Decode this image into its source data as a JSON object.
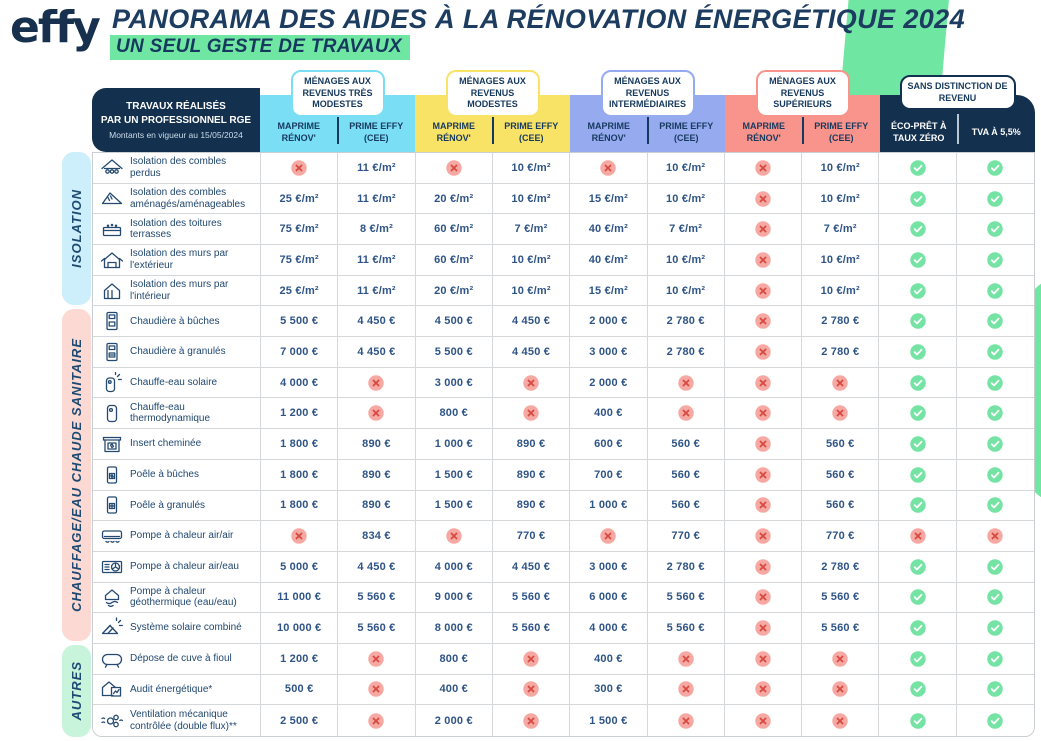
{
  "header": {
    "logo": "effy",
    "title": "PANORAMA DES AIDES À LA RÉNOVATION ÉNERGÉTIQUE 2024",
    "subtitle": "UN SEUL GESTE DE TRAVAUX"
  },
  "colors": {
    "navy": "#13304f",
    "highlight_green": "#70e6a3",
    "check_green": "#74e3a4",
    "cross_red": "#d84a41",
    "cross_bg": "#f6a9a3"
  },
  "table": {
    "corner": {
      "line1": "TRAVAUX RÉALISÉS",
      "line2": "PAR UN PROFESSIONNEL RGE",
      "line3": "Montants en vigueur au 15/05/2024"
    },
    "groups": [
      {
        "label": "MÉNAGES AUX REVENUS TRÈS MODESTES",
        "color": "#7adef5",
        "cols": [
          "MAPRIME RÉNOV'",
          "PRIME EFFY (CEE)"
        ]
      },
      {
        "label": "MÉNAGES AUX REVENUS MODESTES",
        "color": "#f9e366",
        "cols": [
          "MAPRIME RÉNOV'",
          "PRIME EFFY (CEE)"
        ]
      },
      {
        "label": "MÉNAGES AUX REVENUS INTERMÉDIAIRES",
        "color": "#96aaf0",
        "cols": [
          "MAPRIME RÉNOV'",
          "PRIME EFFY (CEE)"
        ]
      },
      {
        "label": "MÉNAGES AUX REVENUS SUPÉRIEURS",
        "color": "#f9948c",
        "cols": [
          "MAPRIME RÉNOV'",
          "PRIME EFFY (CEE)"
        ]
      },
      {
        "label": "SANS DISTINCTION DE REVENU",
        "color": "#13304f",
        "cols": [
          "ÉCO-PRÊT À TAUX ZÉRO",
          "TVA À 5,5%"
        ],
        "dark": true
      }
    ],
    "sections": [
      {
        "label": "ISOLATION",
        "color": "#cdeffb",
        "rows": [
          {
            "icon": "attic-insulation-icon",
            "label": "Isolation des combles perdus",
            "values": [
              "no",
              "11 €/m²",
              "no",
              "10 €/m²",
              "no",
              "10 €/m²",
              "no",
              "10 €/m²",
              "yes",
              "yes"
            ]
          },
          {
            "icon": "converted-attic-icon",
            "label": "Isolation des combles aménagés/aménageables",
            "values": [
              "25 €/m²",
              "11 €/m²",
              "20 €/m²",
              "10 €/m²",
              "15 €/m²",
              "10 €/m²",
              "no",
              "10 €/m²",
              "yes",
              "yes"
            ]
          },
          {
            "icon": "flat-roof-icon",
            "label": "Isolation des toitures terrasses",
            "values": [
              "75 €/m²",
              "8 €/m²",
              "60 €/m²",
              "7 €/m²",
              "40 €/m²",
              "7 €/m²",
              "no",
              "7 €/m²",
              "yes",
              "yes"
            ]
          },
          {
            "icon": "exterior-wall-icon",
            "label": "Isolation des murs par l'extérieur",
            "values": [
              "75 €/m²",
              "11 €/m²",
              "60 €/m²",
              "10 €/m²",
              "40 €/m²",
              "10 €/m²",
              "no",
              "10 €/m²",
              "yes",
              "yes"
            ]
          },
          {
            "icon": "interior-wall-icon",
            "label": "Isolation des murs par l'intérieur",
            "values": [
              "25 €/m²",
              "11 €/m²",
              "20 €/m²",
              "10 €/m²",
              "15 €/m²",
              "10 €/m²",
              "no",
              "10 €/m²",
              "yes",
              "yes"
            ]
          }
        ]
      },
      {
        "label": "CHAUFFAGE/EAU CHAUDE SANITAIRE",
        "color": "#fcd9d2",
        "rows": [
          {
            "icon": "log-boiler-icon",
            "label": "Chaudière à bûches",
            "values": [
              "5 500 €",
              "4 450 €",
              "4 500 €",
              "4 450 €",
              "2 000 €",
              "2 780 €",
              "no",
              "2 780 €",
              "yes",
              "yes"
            ]
          },
          {
            "icon": "pellet-boiler-icon",
            "label": "Chaudière à granulés",
            "values": [
              "7 000 €",
              "4 450 €",
              "5 500 €",
              "4 450 €",
              "3 000 €",
              "2 780 €",
              "no",
              "2 780 €",
              "yes",
              "yes"
            ]
          },
          {
            "icon": "solar-water-heater-icon",
            "label": "Chauffe-eau solaire",
            "values": [
              "4 000 €",
              "no",
              "3 000 €",
              "no",
              "2 000 €",
              "no",
              "no",
              "no",
              "yes",
              "yes"
            ]
          },
          {
            "icon": "thermodynamic-water-heater-icon",
            "label": "Chauffe-eau thermodynamique",
            "values": [
              "1 200 €",
              "no",
              "800 €",
              "no",
              "400 €",
              "no",
              "no",
              "no",
              "yes",
              "yes"
            ]
          },
          {
            "icon": "fireplace-insert-icon",
            "label": "Insert cheminée",
            "values": [
              "1 800 €",
              "890 €",
              "1 000 €",
              "890 €",
              "600 €",
              "560 €",
              "no",
              "560 €",
              "yes",
              "yes"
            ]
          },
          {
            "icon": "log-stove-icon",
            "label": "Poêle à bûches",
            "values": [
              "1 800 €",
              "890 €",
              "1 500 €",
              "890 €",
              "700 €",
              "560 €",
              "no",
              "560 €",
              "yes",
              "yes"
            ]
          },
          {
            "icon": "pellet-stove-icon",
            "label": "Poêle à granulés",
            "values": [
              "1 800 €",
              "890 €",
              "1 500 €",
              "890 €",
              "1 000 €",
              "560 €",
              "no",
              "560 €",
              "yes",
              "yes"
            ]
          },
          {
            "icon": "air-air-heat-pump-icon",
            "label": "Pompe à chaleur air/air",
            "values": [
              "no",
              "834 €",
              "no",
              "770 €",
              "no",
              "770 €",
              "no",
              "770 €",
              "no",
              "no"
            ]
          },
          {
            "icon": "air-water-heat-pump-icon",
            "label": "Pompe à chaleur air/eau",
            "values": [
              "5 000 €",
              "4 450 €",
              "4 000 €",
              "4 450 €",
              "3 000 €",
              "2 780 €",
              "no",
              "2 780 €",
              "yes",
              "yes"
            ]
          },
          {
            "icon": "geothermal-heat-pump-icon",
            "label": "Pompe à chaleur géothermique (eau/eau)",
            "values": [
              "11 000 €",
              "5 560 €",
              "9 000 €",
              "5 560 €",
              "6 000 €",
              "5 560 €",
              "no",
              "5 560 €",
              "yes",
              "yes"
            ]
          },
          {
            "icon": "combined-solar-system-icon",
            "label": "Système solaire combiné",
            "values": [
              "10 000 €",
              "5 560 €",
              "8 000 €",
              "5 560 €",
              "4 000 €",
              "5 560 €",
              "no",
              "5 560 €",
              "yes",
              "yes"
            ]
          }
        ]
      },
      {
        "label": "AUTRES",
        "color": "#c9f4dc",
        "rows": [
          {
            "icon": "oil-tank-icon",
            "label": "Dépose de cuve à fioul",
            "values": [
              "1 200 €",
              "no",
              "800 €",
              "no",
              "400 €",
              "no",
              "no",
              "no",
              "yes",
              "yes"
            ]
          },
          {
            "icon": "energy-audit-icon",
            "label": "Audit énergétique*",
            "values": [
              "500 €",
              "no",
              "400 €",
              "no",
              "300 €",
              "no",
              "no",
              "no",
              "yes",
              "yes"
            ]
          },
          {
            "icon": "ventilation-icon",
            "label": "Ventilation mécanique contrôlée (double flux)**",
            "values": [
              "2 500 €",
              "no",
              "2 000 €",
              "no",
              "1 500 €",
              "no",
              "no",
              "no",
              "yes",
              "yes"
            ]
          }
        ]
      }
    ]
  }
}
